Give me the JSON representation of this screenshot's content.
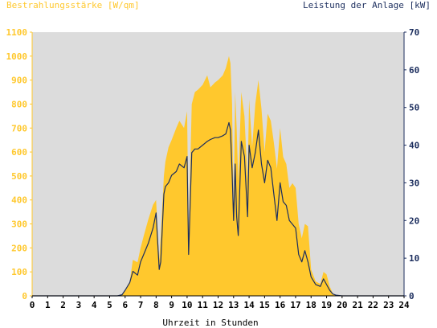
{
  "chart_data": {
    "type": "area",
    "title_left": "Bestrahlungsstärke [W/qm]",
    "title_right": "Leistung der Anlage [kW]",
    "xlabel": "Uhrzeit in Stunden",
    "xlim": [
      0,
      24
    ],
    "x_ticks": [
      "0",
      "1",
      "2",
      "3",
      "4",
      "5",
      "6",
      "7",
      "8",
      "9",
      "10",
      "11",
      "12",
      "13",
      "14",
      "15",
      "16",
      "17",
      "18",
      "19",
      "20",
      "21",
      "22",
      "23",
      "24"
    ],
    "y_left_lim": [
      0,
      1100
    ],
    "y_left_ticks": [
      "0",
      "100",
      "200",
      "300",
      "400",
      "500",
      "600",
      "700",
      "800",
      "900",
      "1000",
      "1100"
    ],
    "y_right_lim": [
      0,
      70
    ],
    "y_right_ticks": [
      "0",
      "10",
      "20",
      "30",
      "40",
      "50",
      "60",
      "70"
    ],
    "colors": {
      "plot_bg": "#dcdcdc",
      "irradiance_fill": "#ffc82d",
      "power_line": "#1c2e5e",
      "left_axis": "#ffc82d",
      "right_axis": "#1c2e5e",
      "x_axis": "#000000"
    },
    "series": [
      {
        "axis": "left",
        "style": "area",
        "x": [
          0,
          5.5,
          5.8,
          6.0,
          6.3,
          6.5,
          6.8,
          7.0,
          7.2,
          7.5,
          7.8,
          8.0,
          8.2,
          8.3,
          8.5,
          8.6,
          8.8,
          9.0,
          9.3,
          9.5,
          9.8,
          10.0,
          10.1,
          10.3,
          10.5,
          10.7,
          11.0,
          11.3,
          11.5,
          11.8,
          12.0,
          12.3,
          12.5,
          12.7,
          12.8,
          12.9,
          13.0,
          13.1,
          13.2,
          13.3,
          13.5,
          13.7,
          13.9,
          14.0,
          14.2,
          14.4,
          14.6,
          14.8,
          15.0,
          15.2,
          15.4,
          15.6,
          15.8,
          16.0,
          16.2,
          16.4,
          16.6,
          16.8,
          17.0,
          17.2,
          17.4,
          17.6,
          17.8,
          18.0,
          18.3,
          18.6,
          18.8,
          19.0,
          19.2,
          19.4,
          19.6,
          20.0,
          24
        ],
        "values": [
          0,
          0,
          5,
          25,
          60,
          150,
          140,
          200,
          250,
          320,
          380,
          400,
          150,
          250,
          500,
          560,
          620,
          650,
          700,
          730,
          700,
          770,
          250,
          800,
          850,
          860,
          880,
          920,
          870,
          890,
          900,
          920,
          950,
          1000,
          970,
          800,
          330,
          850,
          700,
          480,
          850,
          750,
          480,
          820,
          620,
          800,
          900,
          780,
          600,
          760,
          730,
          640,
          530,
          700,
          580,
          550,
          450,
          470,
          450,
          300,
          240,
          300,
          290,
          110,
          60,
          50,
          100,
          90,
          40,
          10,
          2,
          0,
          0
        ]
      },
      {
        "axis": "right",
        "style": "line",
        "x": [
          0,
          5.5,
          5.8,
          6.0,
          6.3,
          6.5,
          6.8,
          7.0,
          7.2,
          7.5,
          7.8,
          8.0,
          8.2,
          8.3,
          8.5,
          8.6,
          8.8,
          9.0,
          9.3,
          9.5,
          9.8,
          10.0,
          10.1,
          10.3,
          10.5,
          10.7,
          11.0,
          11.3,
          11.5,
          11.8,
          12.0,
          12.3,
          12.5,
          12.7,
          12.8,
          12.9,
          13.0,
          13.1,
          13.2,
          13.3,
          13.5,
          13.7,
          13.9,
          14.0,
          14.2,
          14.4,
          14.6,
          14.8,
          15.0,
          15.2,
          15.4,
          15.6,
          15.8,
          16.0,
          16.2,
          16.4,
          16.6,
          16.8,
          17.0,
          17.2,
          17.4,
          17.6,
          17.8,
          18.0,
          18.3,
          18.6,
          18.8,
          19.0,
          19.2,
          19.4,
          19.6,
          20.0,
          24
        ],
        "values": [
          0,
          0,
          0.3,
          1.5,
          3.5,
          6.5,
          5.5,
          9,
          11,
          14,
          18,
          22,
          7,
          9,
          27,
          29,
          30,
          32,
          33,
          35,
          34,
          37,
          11,
          38,
          39,
          39,
          40,
          41,
          41.5,
          42,
          42,
          42.5,
          43,
          46,
          44,
          33,
          20,
          35,
          21,
          16,
          41,
          37,
          21,
          40,
          34,
          38,
          44,
          35,
          30,
          36,
          34,
          27,
          20,
          30,
          25,
          24,
          20,
          19,
          18,
          11,
          9,
          12,
          9,
          5,
          3,
          2.5,
          4.5,
          3,
          1.5,
          0.5,
          0.2,
          0,
          0
        ]
      }
    ]
  }
}
